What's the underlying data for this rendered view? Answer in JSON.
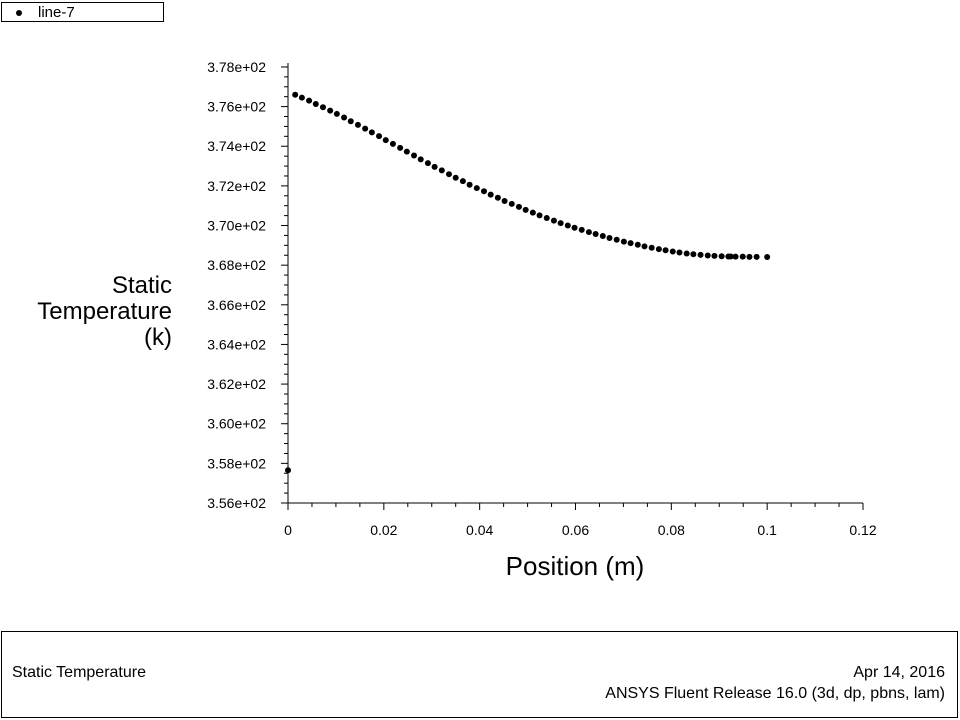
{
  "legend": {
    "label": "line-7"
  },
  "footer": {
    "title": "Static Temperature",
    "date": "Apr 14, 2016",
    "release": "ANSYS Fluent Release 16.0 (3d, dp, pbns, lam)"
  },
  "chart_data": {
    "type": "scatter",
    "title": "",
    "xlabel": "Position (m)",
    "ylabel_lines": [
      "Static",
      "Temperature",
      "(k)"
    ],
    "xlim": [
      0,
      0.12
    ],
    "ylim": [
      355.6,
      377.8
    ],
    "x_ticks": [
      0,
      0.02,
      0.04,
      0.06,
      0.08,
      0.1,
      0.12
    ],
    "x_tick_labels": [
      "0",
      "0.02",
      "0.04",
      "0.06",
      "0.08",
      "0.1",
      "0.12"
    ],
    "y_ticks": [
      355.6,
      357.6,
      359.6,
      361.6,
      363.6,
      365.6,
      367.6,
      369.6,
      371.6,
      373.6,
      375.6,
      377.6
    ],
    "y_tick_labels": [
      "3.56e+02",
      "3.58e+02",
      "3.60e+02",
      "3.62e+02",
      "3.64e+02",
      "3.66e+02",
      "3.68e+02",
      "3.70e+02",
      "3.72e+02",
      "3.74e+02",
      "3.76e+02",
      "3.78e+02"
    ],
    "grid": false,
    "legend_position": "top-left",
    "series": [
      {
        "name": "line-7",
        "x": [
          0,
          0.0015,
          0.0029,
          0.0044,
          0.0058,
          0.0073,
          0.0088,
          0.0102,
          0.0117,
          0.0131,
          0.0146,
          0.0161,
          0.0175,
          0.019,
          0.0204,
          0.0219,
          0.0234,
          0.0248,
          0.0263,
          0.0277,
          0.0292,
          0.0306,
          0.0321,
          0.0336,
          0.035,
          0.0365,
          0.0379,
          0.0394,
          0.0409,
          0.0423,
          0.0438,
          0.0452,
          0.0467,
          0.0482,
          0.0496,
          0.0511,
          0.0525,
          0.054,
          0.0555,
          0.0569,
          0.0584,
          0.0598,
          0.0613,
          0.0628,
          0.0642,
          0.0657,
          0.0671,
          0.0686,
          0.0701,
          0.0715,
          0.073,
          0.0744,
          0.0759,
          0.0774,
          0.0788,
          0.0803,
          0.0817,
          0.0832,
          0.0846,
          0.0861,
          0.0876,
          0.089,
          0.0905,
          0.0919,
          0.0924,
          0.0934,
          0.0949,
          0.0963,
          0.0978,
          0.1
        ],
        "values": [
          357.25,
          376.2,
          376.05,
          375.9,
          375.73,
          375.57,
          375.4,
          375.23,
          375.05,
          374.86,
          374.68,
          374.49,
          374.3,
          374.11,
          373.91,
          373.72,
          373.52,
          373.33,
          373.13,
          372.94,
          372.75,
          372.56,
          372.38,
          372.19,
          372.01,
          371.84,
          371.66,
          371.49,
          371.33,
          371.16,
          371.0,
          370.84,
          370.69,
          370.54,
          370.39,
          370.25,
          370.11,
          369.98,
          369.85,
          369.72,
          369.6,
          369.49,
          369.38,
          369.27,
          369.17,
          369.07,
          368.97,
          368.88,
          368.79,
          368.71,
          368.63,
          368.55,
          368.48,
          368.41,
          368.35,
          368.29,
          368.24,
          368.19,
          368.15,
          368.12,
          368.09,
          368.07,
          368.05,
          368.04,
          368.04,
          368.03,
          368.03,
          368.02,
          368.02,
          368.01
        ]
      }
    ]
  }
}
